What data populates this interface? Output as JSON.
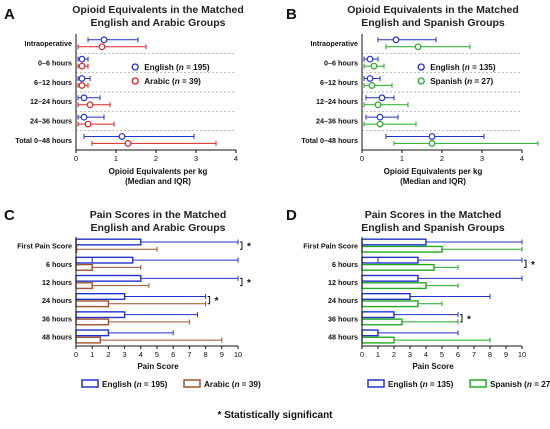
{
  "colors": {
    "english": "#2233cc",
    "arabic": "#dd2222",
    "spanish": "#22aa22",
    "arabic_bar": "#a0522d",
    "grid": "#9a9a9a"
  },
  "footnote": "* Statistically significant",
  "chart_data": [
    {
      "panel": "A",
      "type": "scatter",
      "title_lines": [
        "Opioid Equivalents in the Matched",
        "English and Arabic Groups"
      ],
      "xlabel_lines": [
        "Opioid Equivalents per kg",
        "(Median and  IQR)"
      ],
      "xlim": [
        0,
        4
      ],
      "xticks": [
        "0",
        "1",
        "2",
        "3",
        "4"
      ],
      "categories": [
        "Intraoperative",
        "0–6 hours",
        "6–12 hours",
        "12–24 hours",
        "24–36 hours",
        "Total 0–48 hours"
      ],
      "series": [
        {
          "name": "English",
          "n": "195",
          "color": "#2233cc",
          "median": [
            0.7,
            0.15,
            0.15,
            0.2,
            0.2,
            1.15
          ],
          "q1": [
            0.3,
            0.05,
            0.05,
            0.05,
            0.05,
            0.2
          ],
          "q3": [
            1.55,
            0.3,
            0.35,
            0.6,
            0.7,
            2.95
          ]
        },
        {
          "name": "Arabic",
          "n": "39",
          "color": "#dd2222",
          "median": [
            0.65,
            0.15,
            0.15,
            0.35,
            0.3,
            1.3
          ],
          "q1": [
            0.05,
            0.05,
            0.05,
            0.05,
            0.05,
            0.4
          ],
          "q3": [
            1.75,
            0.3,
            0.3,
            0.85,
            0.95,
            3.5
          ]
        }
      ],
      "legend": "right"
    },
    {
      "panel": "B",
      "type": "scatter",
      "title_lines": [
        "Opioid Equivalents in the Matched",
        "English and Spanish Groups"
      ],
      "xlabel_lines": [
        "Opioid Equivalents per kg",
        "(Median and  IQR)"
      ],
      "xlim": [
        0,
        4
      ],
      "xticks": [
        "0",
        "1",
        "2",
        "3",
        "4"
      ],
      "categories": [
        "Intraoperative",
        "0–6 hours",
        "6–12 hours",
        "12–24 hours",
        "24–36 hours",
        "Total 0–48 hours"
      ],
      "series": [
        {
          "name": "English",
          "n": "135",
          "color": "#2233cc",
          "median": [
            0.85,
            0.2,
            0.2,
            0.5,
            0.45,
            1.75
          ],
          "q1": [
            0.4,
            0.05,
            0.05,
            0.1,
            0.1,
            0.6
          ],
          "q3": [
            1.85,
            0.4,
            0.45,
            0.8,
            0.9,
            3.05
          ]
        },
        {
          "name": "Spanish",
          "n": "27",
          "color": "#22aa22",
          "median": [
            1.4,
            0.3,
            0.25,
            0.4,
            0.45,
            1.75
          ],
          "q1": [
            0.6,
            0.05,
            0.05,
            0.05,
            0.05,
            0.8
          ],
          "q3": [
            2.7,
            0.55,
            0.75,
            1.15,
            1.35,
            4.4
          ]
        }
      ],
      "legend": "right"
    },
    {
      "panel": "C",
      "type": "bar",
      "orientation": "horizontal",
      "title_lines": [
        "Pain Scores in the Matched",
        "English and Arabic Groups"
      ],
      "xlabel": "Pain Score",
      "xlim": [
        0,
        10
      ],
      "xticks": [
        "0",
        "1",
        "2",
        "3",
        "4",
        "5",
        "6",
        "7",
        "8",
        "9",
        "10"
      ],
      "categories": [
        "First Pain Score",
        "6 hours",
        "12 hours",
        "24 hours",
        "36 hours",
        "48 hours"
      ],
      "series": [
        {
          "name": "English",
          "n": "195",
          "color": "#2233cc",
          "values": [
            4,
            3.5,
            4,
            3,
            3,
            2
          ],
          "low": [
            0,
            1,
            0,
            0,
            0,
            0
          ],
          "high": [
            10,
            10,
            10,
            8,
            7.5,
            6
          ]
        },
        {
          "name": "Arabic",
          "n": "39",
          "color": "#a0522d",
          "values": [
            0,
            1,
            1,
            2,
            2,
            1.5
          ],
          "low": [
            0,
            0,
            0,
            0,
            0,
            0
          ],
          "high": [
            5,
            4,
            4.5,
            8,
            7,
            9
          ]
        }
      ],
      "significant": [
        0,
        2,
        3
      ],
      "legend": "bottom"
    },
    {
      "panel": "D",
      "type": "bar",
      "orientation": "horizontal",
      "title_lines": [
        "Pain Scores in the Matched",
        "English and Spanish Groups"
      ],
      "xlabel": "Pain Score",
      "xlim": [
        0,
        10
      ],
      "xticks": [
        "0",
        "1",
        "2",
        "3",
        "4",
        "5",
        "6",
        "7",
        "8",
        "9",
        "10"
      ],
      "categories": [
        "First Pain Score",
        "6 hours",
        "12 hours",
        "24 hours",
        "36 hours",
        "48 hours"
      ],
      "series": [
        {
          "name": "English",
          "n": "135",
          "color": "#2233cc",
          "values": [
            4,
            3.5,
            3.5,
            3,
            2,
            1
          ],
          "low": [
            0,
            1,
            0,
            0,
            0,
            0
          ],
          "high": [
            10,
            10,
            10,
            8,
            6,
            6
          ]
        },
        {
          "name": "Spanish",
          "n": "27",
          "color": "#22aa22",
          "values": [
            5,
            4.5,
            4,
            3.5,
            2.5,
            2
          ],
          "low": [
            0,
            0,
            0,
            0,
            0,
            0
          ],
          "high": [
            10,
            6,
            6,
            5,
            6,
            8
          ]
        }
      ],
      "significant": [
        1,
        4
      ],
      "legend": "bottom"
    }
  ]
}
